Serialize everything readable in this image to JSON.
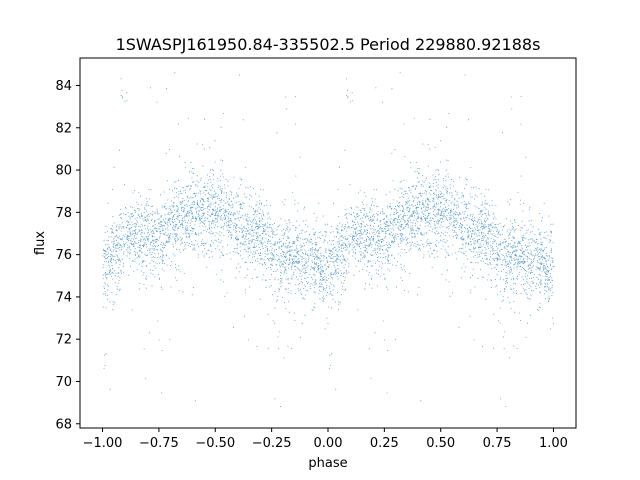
{
  "chart_data": {
    "type": "scatter",
    "title": "1SWASPJ161950.84-335502.5 Period 229880.92188s",
    "xlabel": "phase",
    "ylabel": "flux",
    "xlim": [
      -1.1,
      1.1
    ],
    "ylim": [
      67.8,
      85.3
    ],
    "xticks": [
      -1.0,
      -0.75,
      -0.5,
      -0.25,
      0.0,
      0.25,
      0.5,
      0.75,
      1.0
    ],
    "xtick_labels": [
      "−1.00",
      "−0.75",
      "−0.50",
      "−0.25",
      "0.00",
      "0.25",
      "0.50",
      "0.75",
      "1.00"
    ],
    "yticks": [
      68,
      70,
      72,
      74,
      76,
      78,
      80,
      82,
      84
    ],
    "ytick_labels": [
      "68",
      "70",
      "72",
      "74",
      "76",
      "78",
      "80",
      "82",
      "84"
    ],
    "grid": false,
    "legend": "none",
    "marker_color": "#1f77b4",
    "series": [
      {
        "description_of_shape": "phase-folded light curve, repeated for phase -1..0 and 0..1",
        "trend": {
          "x": [
            0.0,
            0.05,
            0.1,
            0.15,
            0.2,
            0.25,
            0.3,
            0.35,
            0.4,
            0.45,
            0.5,
            0.55,
            0.6,
            0.65,
            0.7,
            0.75,
            0.8,
            0.85,
            0.9,
            0.95,
            1.0
          ],
          "y": [
            75.3,
            75.8,
            76.8,
            77.0,
            76.8,
            76.6,
            77.4,
            77.8,
            78.0,
            77.9,
            78.2,
            77.8,
            77.4,
            77.1,
            76.9,
            76.3,
            76.1,
            75.9,
            75.9,
            75.5,
            75.3
          ]
        },
        "points_per_cycle": 2600
      }
    ]
  }
}
